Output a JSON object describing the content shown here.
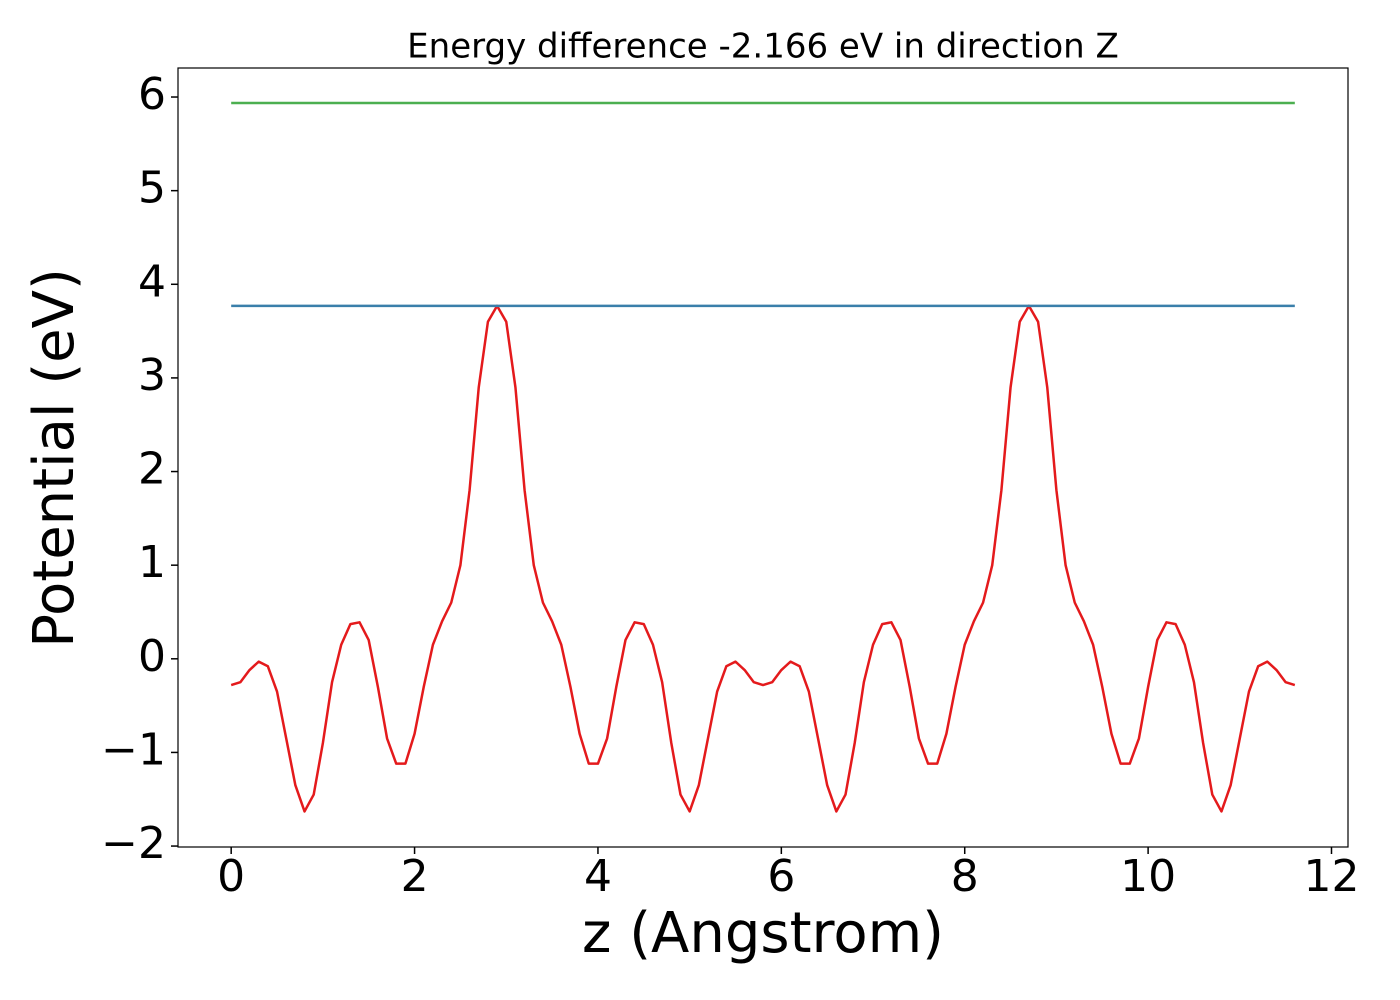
{
  "chart_data": {
    "type": "line",
    "title": "Energy difference -2.166 eV in direction Z",
    "xlabel": "z (Angstrom)",
    "ylabel": "Potential (eV)",
    "xlim": [
      -0.58,
      12.18
    ],
    "ylim": [
      -2.01,
      6.31
    ],
    "xticks": [
      0,
      2,
      4,
      6,
      8,
      10,
      12
    ],
    "yticks": [
      {
        "value": -2,
        "label": "−2"
      },
      {
        "value": -1,
        "label": "−1"
      },
      0,
      1,
      2,
      3,
      4,
      5,
      6
    ],
    "series": [
      {
        "color": "#e41a1c",
        "x": [
          0,
          0.1,
          0.2,
          0.3,
          0.4,
          0.5,
          0.6,
          0.7,
          0.8,
          0.9,
          1.0,
          1.1,
          1.2,
          1.3,
          1.4,
          1.5,
          1.6,
          1.7,
          1.8,
          1.9,
          2.0,
          2.1,
          2.2,
          2.3,
          2.4,
          2.5,
          2.6,
          2.7,
          2.8,
          2.9,
          3.0,
          3.1,
          3.2,
          3.3,
          3.4,
          3.5,
          3.6,
          3.7,
          3.8,
          3.9,
          4.0,
          4.1,
          4.2,
          4.3,
          4.4,
          4.5,
          4.6,
          4.7,
          4.8,
          4.9,
          5.0,
          5.1,
          5.2,
          5.3,
          5.4,
          5.5,
          5.6,
          5.7,
          5.8,
          5.9,
          6.0,
          6.1,
          6.2,
          6.3,
          6.4,
          6.5,
          6.6,
          6.7,
          6.8,
          6.9,
          7.0,
          7.1,
          7.2,
          7.3,
          7.4,
          7.5,
          7.6,
          7.7,
          7.8,
          7.9,
          8.0,
          8.1,
          8.2,
          8.3,
          8.4,
          8.5,
          8.6,
          8.7,
          8.8,
          8.9,
          9.0,
          9.1,
          9.2,
          9.3,
          9.4,
          9.5,
          9.6,
          9.7,
          9.8,
          9.9,
          10.0,
          10.1,
          10.2,
          10.3,
          10.4,
          10.5,
          10.6,
          10.7,
          10.8,
          10.9,
          11.0,
          11.1,
          11.2,
          11.3,
          11.4,
          11.5,
          11.6
        ],
        "values": [
          -0.28,
          -0.25,
          -0.12,
          -0.03,
          -0.08,
          -0.35,
          -0.85,
          -1.35,
          -1.63,
          -1.45,
          -0.9,
          -0.25,
          0.15,
          0.37,
          0.39,
          0.2,
          -0.3,
          -0.85,
          -1.12,
          -1.12,
          -0.8,
          -0.3,
          0.15,
          0.4,
          0.6,
          1.0,
          1.8,
          2.9,
          3.6,
          3.77,
          3.6,
          2.9,
          1.8,
          1.0,
          0.6,
          0.4,
          0.15,
          -0.3,
          -0.8,
          -1.12,
          -1.12,
          -0.85,
          -0.3,
          0.2,
          0.39,
          0.37,
          0.15,
          -0.25,
          -0.9,
          -1.45,
          -1.63,
          -1.35,
          -0.85,
          -0.35,
          -0.08,
          -0.03,
          -0.12,
          -0.25,
          -0.28,
          -0.25,
          -0.12,
          -0.03,
          -0.08,
          -0.35,
          -0.85,
          -1.35,
          -1.63,
          -1.45,
          -0.9,
          -0.25,
          0.15,
          0.37,
          0.39,
          0.2,
          -0.3,
          -0.85,
          -1.12,
          -1.12,
          -0.8,
          -0.3,
          0.15,
          0.4,
          0.6,
          1.0,
          1.8,
          2.9,
          3.6,
          3.77,
          3.6,
          2.9,
          1.8,
          1.0,
          0.6,
          0.4,
          0.15,
          -0.3,
          -0.8,
          -1.12,
          -1.12,
          -0.85,
          -0.3,
          0.2,
          0.39,
          0.37,
          0.15,
          -0.25,
          -0.9,
          -1.45,
          -1.63,
          -1.35,
          -0.85,
          -0.35,
          -0.08,
          -0.03,
          -0.12,
          -0.25,
          -0.28
        ]
      },
      {
        "color": "#3a7faa",
        "x": [
          0,
          11.6
        ],
        "values": [
          3.77,
          3.77
        ]
      },
      {
        "color": "#4caf50",
        "x": [
          0,
          11.6
        ],
        "values": [
          5.936,
          5.936
        ]
      }
    ]
  }
}
